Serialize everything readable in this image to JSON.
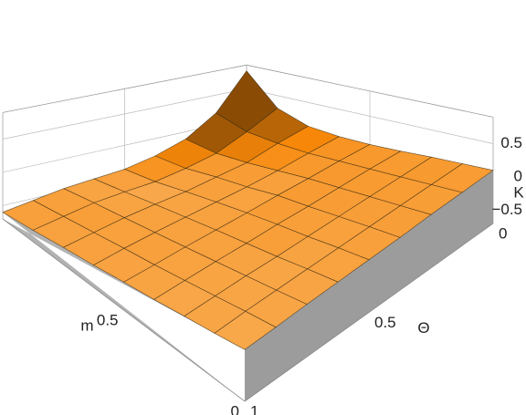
{
  "chart_data": {
    "type": "surface",
    "xlabel": "m",
    "ylabel": "Θ",
    "zlabel": "K",
    "x": [
      0,
      0.125,
      0.25,
      0.375,
      0.5,
      0.625,
      0.75,
      0.875,
      1
    ],
    "y": [
      0,
      0.125,
      0.25,
      0.375,
      0.5,
      0.625,
      0.75,
      0.875,
      1
    ],
    "z": [
      [
        0.1,
        0.09,
        0.08,
        0.06,
        0.05,
        0.04,
        0.03,
        0.01,
        0
      ],
      [
        0.09,
        0.07,
        0.05,
        0.03,
        0.01,
        -0.01,
        -0.03,
        -0.05,
        -0.08
      ],
      [
        0.08,
        0.05,
        0.02,
        -0.01,
        -0.04,
        -0.07,
        -0.09,
        -0.12,
        -0.15
      ],
      [
        0.06,
        0.03,
        -0.01,
        -0.05,
        -0.08,
        -0.12,
        -0.15,
        -0.19,
        -0.23
      ],
      [
        0.05,
        0.01,
        -0.04,
        -0.08,
        -0.13,
        -0.17,
        -0.21,
        -0.26,
        -0.3
      ],
      [
        0.06,
        -0.01,
        -0.09,
        -0.15,
        -0.19,
        -0.23,
        -0.27,
        -0.32,
        -0.38
      ],
      [
        0.11,
        0,
        -0.14,
        -0.2,
        -0.26,
        -0.29,
        -0.33,
        -0.39,
        -0.45
      ],
      [
        0.29,
        0.04,
        -0.17,
        -0.27,
        -0.34,
        -0.36,
        -0.39,
        -0.46,
        -0.53
      ],
      [
        0.8,
        0.2,
        -0.12,
        -0.28,
        -0.38,
        -0.42,
        -0.46,
        -0.53,
        -0.6
      ]
    ],
    "xlim": [
      0,
      1
    ],
    "xticks": [
      0,
      0.5,
      1
    ],
    "ylim": [
      0,
      1
    ],
    "yticks": [
      0,
      0.5,
      1
    ],
    "zlim": [
      -0.7,
      0.9
    ],
    "zticks": [
      {
        "value": -0.5,
        "label": "−0.5"
      },
      0,
      0.5
    ],
    "color": "#f7a035",
    "mesh": true
  }
}
